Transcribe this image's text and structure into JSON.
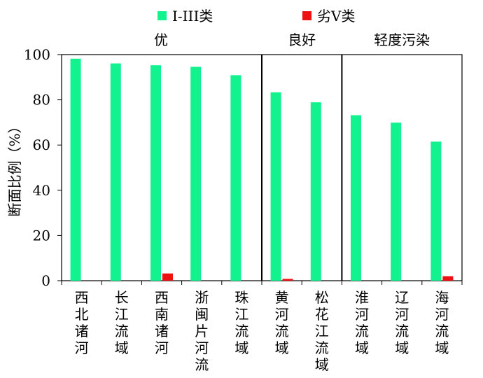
{
  "chart_data": {
    "type": "bar",
    "categories": [
      "西北诸河",
      "长江流域",
      "西南诸河",
      "浙闽片河流",
      "珠江流域",
      "黄河流域",
      "松花江流域",
      "淮河流域",
      "辽河流域",
      "海河流域"
    ],
    "series": [
      {
        "name": "I-III类",
        "color": "#12f28f",
        "values": [
          98.2,
          96.1,
          95.3,
          94.6,
          90.9,
          83.3,
          78.9,
          73.2,
          69.9,
          61.5
        ]
      },
      {
        "name": "劣V类",
        "color": "#ee1111",
        "values": [
          0,
          0,
          3.2,
          0,
          0,
          0.8,
          0,
          0,
          0,
          2.0
        ]
      }
    ],
    "ylabel": "断面比例（%）",
    "ylim": [
      0,
      100
    ],
    "yticks": [
      0,
      20,
      40,
      60,
      80,
      100
    ],
    "grid": false,
    "legend": "top",
    "groups": [
      {
        "label": "优",
        "from": 0,
        "to": 4
      },
      {
        "label": "良好",
        "from": 5,
        "to": 6
      },
      {
        "label": "轻度污染",
        "from": 7,
        "to": 9
      }
    ]
  }
}
